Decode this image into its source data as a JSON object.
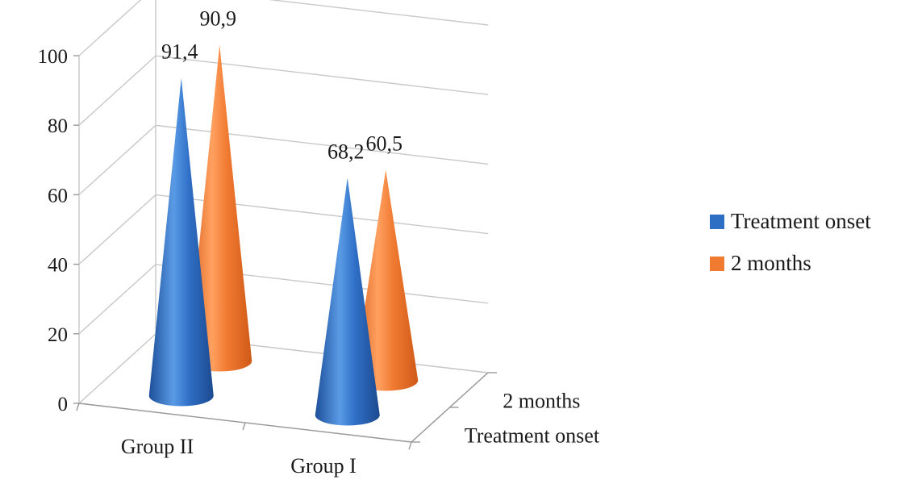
{
  "chart_data": {
    "type": "bar",
    "shape": "cone",
    "three_d": true,
    "categories": [
      "Group II",
      "Group I"
    ],
    "depth_categories": [
      "Treatment onset",
      "2 months"
    ],
    "series": [
      {
        "name": "Treatment onset",
        "values": [
          91.4,
          68.2
        ],
        "labels": [
          "91,4",
          "68,2"
        ],
        "color": "#2e6fc4"
      },
      {
        "name": "2 months",
        "values": [
          90.9,
          60.5
        ],
        "labels": [
          "90,9",
          "60,5"
        ],
        "color": "#f07a30"
      }
    ],
    "y_ticks": [
      "0",
      "20",
      "40",
      "60",
      "80",
      "100"
    ],
    "ylim": [
      0,
      100
    ],
    "grid": true,
    "legend_position": "right"
  }
}
